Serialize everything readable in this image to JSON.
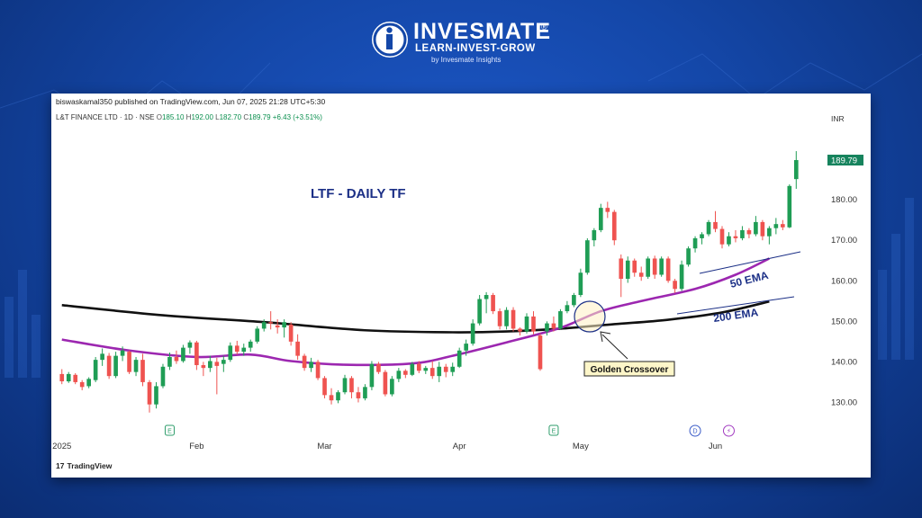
{
  "brand": {
    "name": "INVESMATE",
    "registered": "®",
    "tagline": "LEARN-INVEST-GROW",
    "byline": "by Invesmate Insights"
  },
  "header": {
    "publisher": "biswaskamal350 published on TradingView.com, Jun 07, 2025 21:28 UTC+5:30",
    "symbol": "L&T FINANCE LTD · 1D · NSE",
    "o_label": "O",
    "o_value": "185.10",
    "h_label": "H",
    "h_value": "192.00",
    "l_label": "L",
    "l_value": "182.70",
    "c_label": "C",
    "c_value": "189.79",
    "change": "+6.43 (+3.51%)"
  },
  "footer": {
    "tradingview": "TradingView"
  },
  "colors": {
    "up": "#26a69a",
    "up_fill": "#1f9d55",
    "down": "#ef5350",
    "ema50": "#9c27b0",
    "ema200": "#111111",
    "accent": "#16835d"
  },
  "chart_data": {
    "type": "candlestick",
    "title": "LTF - DAILY TF",
    "currency": "INR",
    "last_price": "189.79",
    "ylim": [
      123,
      200
    ],
    "y_ticks": [
      130,
      140,
      150,
      160,
      170,
      180
    ],
    "y_tick_labels": [
      "130.00",
      "140.00",
      "150.00",
      "160.00",
      "170.00",
      "180.00"
    ],
    "x_labels": [
      {
        "label": "2025",
        "index": 0
      },
      {
        "label": "Feb",
        "index": 20
      },
      {
        "label": "Mar",
        "index": 39
      },
      {
        "label": "Apr",
        "index": 59
      },
      {
        "label": "May",
        "index": 77
      },
      {
        "label": "Jun",
        "index": 97
      }
    ],
    "events": [
      {
        "index": 16,
        "label": "E"
      },
      {
        "index": 73,
        "label": "E"
      },
      {
        "index": 94,
        "label": "D"
      },
      {
        "index": 99,
        "label": "⚡"
      }
    ],
    "candles": [
      {
        "o": 137.0,
        "h": 138.2,
        "l": 134.5,
        "c": 135.2
      },
      {
        "o": 135.2,
        "h": 137.5,
        "l": 134.8,
        "c": 137.0
      },
      {
        "o": 136.8,
        "h": 137.2,
        "l": 134.5,
        "c": 135.0
      },
      {
        "o": 135.0,
        "h": 135.5,
        "l": 133.0,
        "c": 133.8
      },
      {
        "o": 134.0,
        "h": 136.2,
        "l": 133.5,
        "c": 135.8
      },
      {
        "o": 135.5,
        "h": 141.2,
        "l": 135.0,
        "c": 140.5
      },
      {
        "o": 140.5,
        "h": 143.3,
        "l": 139.0,
        "c": 142.0
      },
      {
        "o": 141.5,
        "h": 142.2,
        "l": 135.8,
        "c": 136.5
      },
      {
        "o": 136.5,
        "h": 142.5,
        "l": 136.0,
        "c": 141.5
      },
      {
        "o": 141.5,
        "h": 143.8,
        "l": 140.2,
        "c": 142.8
      },
      {
        "o": 142.5,
        "h": 142.8,
        "l": 137.0,
        "c": 137.5
      },
      {
        "o": 137.5,
        "h": 141.2,
        "l": 136.5,
        "c": 140.5
      },
      {
        "o": 140.5,
        "h": 142.0,
        "l": 134.0,
        "c": 135.0
      },
      {
        "o": 135.0,
        "h": 135.5,
        "l": 127.5,
        "c": 129.5
      },
      {
        "o": 129.5,
        "h": 135.0,
        "l": 128.5,
        "c": 134.0
      },
      {
        "o": 134.0,
        "h": 139.5,
        "l": 133.5,
        "c": 138.8
      },
      {
        "o": 138.8,
        "h": 142.3,
        "l": 138.0,
        "c": 141.2
      },
      {
        "o": 141.2,
        "h": 142.8,
        "l": 139.5,
        "c": 140.2
      },
      {
        "o": 140.2,
        "h": 144.2,
        "l": 139.8,
        "c": 143.5
      },
      {
        "o": 143.5,
        "h": 145.3,
        "l": 142.0,
        "c": 144.8
      },
      {
        "o": 144.8,
        "h": 145.2,
        "l": 138.0,
        "c": 139.2
      },
      {
        "o": 139.2,
        "h": 140.0,
        "l": 136.5,
        "c": 138.5
      },
      {
        "o": 138.5,
        "h": 141.5,
        "l": 137.5,
        "c": 140.2
      },
      {
        "o": 140.0,
        "h": 141.0,
        "l": 132.0,
        "c": 139.0
      },
      {
        "o": 139.5,
        "h": 141.5,
        "l": 137.5,
        "c": 140.5
      },
      {
        "o": 140.5,
        "h": 144.8,
        "l": 140.0,
        "c": 144.0
      },
      {
        "o": 144.0,
        "h": 145.2,
        "l": 141.8,
        "c": 142.5
      },
      {
        "o": 142.5,
        "h": 144.5,
        "l": 141.5,
        "c": 143.5
      },
      {
        "o": 143.5,
        "h": 145.5,
        "l": 142.5,
        "c": 145.0
      },
      {
        "o": 145.0,
        "h": 148.8,
        "l": 144.5,
        "c": 148.2
      },
      {
        "o": 148.2,
        "h": 150.5,
        "l": 147.5,
        "c": 149.8
      },
      {
        "o": 149.8,
        "h": 152.5,
        "l": 148.0,
        "c": 149.5
      },
      {
        "o": 149.0,
        "h": 150.5,
        "l": 147.0,
        "c": 148.5
      },
      {
        "o": 148.5,
        "h": 150.5,
        "l": 146.0,
        "c": 149.8
      },
      {
        "o": 149.2,
        "h": 149.8,
        "l": 144.0,
        "c": 145.0
      },
      {
        "o": 145.0,
        "h": 146.8,
        "l": 140.5,
        "c": 141.5
      },
      {
        "o": 141.5,
        "h": 142.0,
        "l": 137.8,
        "c": 138.5
      },
      {
        "o": 138.5,
        "h": 141.0,
        "l": 137.5,
        "c": 140.0
      },
      {
        "o": 140.0,
        "h": 140.5,
        "l": 135.5,
        "c": 136.0
      },
      {
        "o": 136.0,
        "h": 136.5,
        "l": 131.0,
        "c": 131.8
      },
      {
        "o": 131.8,
        "h": 133.5,
        "l": 129.5,
        "c": 130.5
      },
      {
        "o": 130.5,
        "h": 133.0,
        "l": 129.8,
        "c": 132.5
      },
      {
        "o": 132.5,
        "h": 136.8,
        "l": 132.0,
        "c": 136.0
      },
      {
        "o": 136.0,
        "h": 136.5,
        "l": 131.0,
        "c": 132.5
      },
      {
        "o": 132.5,
        "h": 133.8,
        "l": 130.0,
        "c": 131.0
      },
      {
        "o": 131.0,
        "h": 134.5,
        "l": 130.5,
        "c": 133.8
      },
      {
        "o": 133.8,
        "h": 140.2,
        "l": 133.0,
        "c": 139.5
      },
      {
        "o": 139.5,
        "h": 140.0,
        "l": 137.0,
        "c": 137.5
      },
      {
        "o": 137.5,
        "h": 138.0,
        "l": 131.5,
        "c": 132.0
      },
      {
        "o": 132.0,
        "h": 136.5,
        "l": 131.5,
        "c": 135.8
      },
      {
        "o": 135.8,
        "h": 138.5,
        "l": 135.0,
        "c": 137.8
      },
      {
        "o": 137.8,
        "h": 138.2,
        "l": 136.0,
        "c": 136.8
      },
      {
        "o": 136.8,
        "h": 140.0,
        "l": 136.5,
        "c": 139.5
      },
      {
        "o": 139.5,
        "h": 140.2,
        "l": 137.2,
        "c": 137.8
      },
      {
        "o": 137.8,
        "h": 139.0,
        "l": 137.0,
        "c": 138.5
      },
      {
        "o": 138.5,
        "h": 140.2,
        "l": 135.8,
        "c": 136.5
      },
      {
        "o": 136.5,
        "h": 140.0,
        "l": 135.0,
        "c": 138.8
      },
      {
        "o": 138.8,
        "h": 139.5,
        "l": 136.2,
        "c": 137.5
      },
      {
        "o": 137.5,
        "h": 139.8,
        "l": 136.5,
        "c": 138.8
      },
      {
        "o": 138.8,
        "h": 143.5,
        "l": 138.5,
        "c": 142.8
      },
      {
        "o": 142.8,
        "h": 145.5,
        "l": 141.5,
        "c": 144.5
      },
      {
        "o": 144.5,
        "h": 150.5,
        "l": 144.0,
        "c": 149.5
      },
      {
        "o": 149.5,
        "h": 156.5,
        "l": 149.0,
        "c": 155.5
      },
      {
        "o": 155.5,
        "h": 157.2,
        "l": 152.0,
        "c": 156.5
      },
      {
        "o": 156.5,
        "h": 157.0,
        "l": 151.8,
        "c": 152.5
      },
      {
        "o": 152.5,
        "h": 153.2,
        "l": 148.0,
        "c": 148.8
      },
      {
        "o": 148.8,
        "h": 153.5,
        "l": 148.0,
        "c": 152.8
      },
      {
        "o": 152.8,
        "h": 153.5,
        "l": 147.5,
        "c": 148.2
      },
      {
        "o": 148.2,
        "h": 148.5,
        "l": 146.5,
        "c": 147.5
      },
      {
        "o": 147.5,
        "h": 152.0,
        "l": 147.0,
        "c": 151.2
      },
      {
        "o": 151.2,
        "h": 152.5,
        "l": 146.8,
        "c": 147.5
      },
      {
        "o": 146.5,
        "h": 147.0,
        "l": 137.8,
        "c": 138.2
      },
      {
        "o": 147.5,
        "h": 150.0,
        "l": 146.5,
        "c": 149.5
      },
      {
        "o": 149.5,
        "h": 151.2,
        "l": 147.5,
        "c": 148.2
      },
      {
        "o": 148.2,
        "h": 153.0,
        "l": 148.0,
        "c": 152.5
      },
      {
        "o": 152.5,
        "h": 155.0,
        "l": 152.0,
        "c": 154.0
      },
      {
        "o": 154.0,
        "h": 157.0,
        "l": 153.5,
        "c": 156.5
      },
      {
        "o": 156.5,
        "h": 163.0,
        "l": 156.0,
        "c": 162.0
      },
      {
        "o": 162.0,
        "h": 170.5,
        "l": 161.5,
        "c": 170.0
      },
      {
        "o": 170.0,
        "h": 173.0,
        "l": 168.5,
        "c": 172.5
      },
      {
        "o": 172.5,
        "h": 179.0,
        "l": 172.0,
        "c": 178.0
      },
      {
        "o": 178.0,
        "h": 179.5,
        "l": 175.5,
        "c": 177.0
      },
      {
        "o": 177.0,
        "h": 177.5,
        "l": 168.8,
        "c": 170.0
      },
      {
        "o": 165.5,
        "h": 166.5,
        "l": 156.0,
        "c": 160.5
      },
      {
        "o": 160.5,
        "h": 166.0,
        "l": 159.5,
        "c": 165.0
      },
      {
        "o": 165.0,
        "h": 165.5,
        "l": 161.0,
        "c": 162.0
      },
      {
        "o": 162.0,
        "h": 163.5,
        "l": 160.0,
        "c": 161.0
      },
      {
        "o": 161.0,
        "h": 166.0,
        "l": 160.5,
        "c": 165.5
      },
      {
        "o": 165.5,
        "h": 166.2,
        "l": 160.5,
        "c": 161.5
      },
      {
        "o": 161.5,
        "h": 166.0,
        "l": 161.0,
        "c": 165.5
      },
      {
        "o": 165.5,
        "h": 166.0,
        "l": 159.5,
        "c": 160.0
      },
      {
        "o": 160.0,
        "h": 160.5,
        "l": 157.0,
        "c": 158.0
      },
      {
        "o": 158.0,
        "h": 165.0,
        "l": 157.5,
        "c": 164.0
      },
      {
        "o": 164.0,
        "h": 168.5,
        "l": 163.5,
        "c": 168.0
      },
      {
        "o": 168.0,
        "h": 171.0,
        "l": 167.0,
        "c": 170.5
      },
      {
        "o": 170.5,
        "h": 172.0,
        "l": 169.0,
        "c": 171.5
      },
      {
        "o": 171.5,
        "h": 175.0,
        "l": 171.0,
        "c": 174.5
      },
      {
        "o": 174.5,
        "h": 177.2,
        "l": 172.0,
        "c": 172.8
      },
      {
        "o": 172.8,
        "h": 173.5,
        "l": 168.0,
        "c": 169.0
      },
      {
        "o": 169.0,
        "h": 172.0,
        "l": 168.5,
        "c": 171.0
      },
      {
        "o": 171.0,
        "h": 172.5,
        "l": 169.5,
        "c": 170.5
      },
      {
        "o": 170.5,
        "h": 173.5,
        "l": 170.0,
        "c": 172.5
      },
      {
        "o": 172.5,
        "h": 173.0,
        "l": 170.5,
        "c": 171.5
      },
      {
        "o": 171.5,
        "h": 176.0,
        "l": 171.0,
        "c": 174.5
      },
      {
        "o": 174.5,
        "h": 175.0,
        "l": 170.0,
        "c": 171.0
      },
      {
        "o": 171.0,
        "h": 173.5,
        "l": 169.0,
        "c": 173.0
      },
      {
        "o": 173.0,
        "h": 175.5,
        "l": 171.5,
        "c": 174.0
      },
      {
        "o": 174.0,
        "h": 175.0,
        "l": 172.5,
        "c": 173.2
      },
      {
        "o": 173.2,
        "h": 183.8,
        "l": 173.0,
        "c": 183.4
      },
      {
        "o": 185.1,
        "h": 192.0,
        "l": 182.7,
        "c": 189.79
      }
    ],
    "ema50": [
      [
        0,
        145.5
      ],
      [
        10,
        142.8
      ],
      [
        20,
        141.2
      ],
      [
        28,
        141.8
      ],
      [
        34,
        140.2
      ],
      [
        42,
        139.3
      ],
      [
        52,
        139.6
      ],
      [
        58,
        141.5
      ],
      [
        66,
        144.8
      ],
      [
        74,
        148.4
      ],
      [
        80,
        152.5
      ],
      [
        86,
        155.0
      ],
      [
        94,
        158.0
      ],
      [
        100,
        161.5
      ],
      [
        105,
        165.5
      ]
    ],
    "ema200": [
      [
        0,
        154.0
      ],
      [
        15,
        151.5
      ],
      [
        30,
        149.8
      ],
      [
        45,
        147.8
      ],
      [
        58,
        147.3
      ],
      [
        66,
        147.5
      ],
      [
        74,
        148.2
      ],
      [
        82,
        149.3
      ],
      [
        90,
        150.4
      ],
      [
        98,
        152.2
      ],
      [
        105,
        154.9
      ]
    ],
    "annotations": {
      "ema50_label": "50 EMA",
      "ema200_label": "200 EMA",
      "crossover_label": "Golden Crossover"
    }
  }
}
